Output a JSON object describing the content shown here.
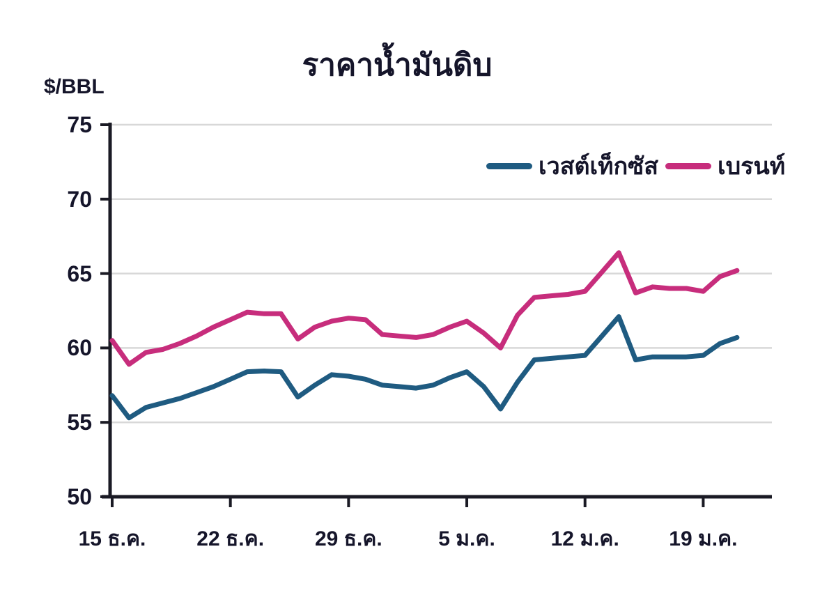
{
  "chart_data": {
    "type": "line",
    "title": "ราคาน้ำมันดิบ",
    "ylabel": "$/BBL",
    "ylim": [
      50,
      75
    ],
    "ytick_step": 5,
    "grid": "horizontal-light-gray",
    "legend_position": "top-right-inside",
    "x_tick_labels": [
      "15 ธ.ค.",
      "22 ธ.ค.",
      "29 ธ.ค.",
      "5 ม.ค.",
      "12 ม.ค.",
      "19 ม.ค."
    ],
    "x_tick_indices": [
      0,
      7,
      14,
      21,
      28,
      35
    ],
    "series": [
      {
        "name": "เวสต์เท็กซัส",
        "color": "#1f5b81",
        "values": [
          56.8,
          55.3,
          56.0,
          56.3,
          56.6,
          57.0,
          57.4,
          57.9,
          58.4,
          58.45,
          58.4,
          56.7,
          57.5,
          58.2,
          58.1,
          57.9,
          57.5,
          57.4,
          57.3,
          57.5,
          58.0,
          58.4,
          57.4,
          55.9,
          57.7,
          59.2,
          59.3,
          59.4,
          59.5,
          60.8,
          62.1,
          59.2,
          59.4,
          59.4,
          59.4,
          59.5,
          60.3,
          60.7
        ]
      },
      {
        "name": "เบรนท์",
        "color": "#c72d7c",
        "values": [
          60.5,
          58.9,
          59.7,
          59.9,
          60.3,
          60.8,
          61.4,
          61.9,
          62.4,
          62.3,
          62.3,
          60.6,
          61.4,
          61.8,
          62.0,
          61.9,
          60.9,
          60.8,
          60.7,
          60.9,
          61.4,
          61.8,
          61.0,
          60.0,
          62.2,
          63.4,
          63.5,
          63.6,
          63.8,
          65.1,
          66.4,
          63.7,
          64.1,
          64.0,
          64.0,
          63.8,
          64.8,
          65.2
        ]
      }
    ],
    "colors": {
      "axis": "#1a1a24",
      "grid": "#d8d8d8",
      "text": "#15152a"
    }
  }
}
